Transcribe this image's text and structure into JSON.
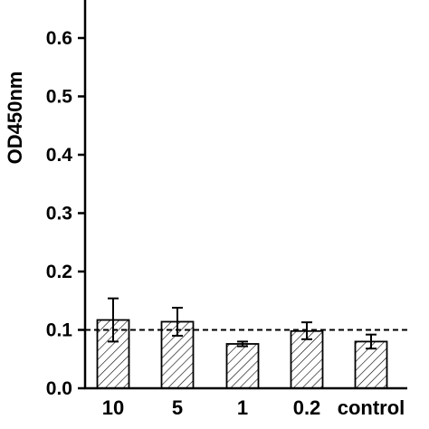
{
  "chart_data": {
    "type": "bar",
    "title": "",
    "xlabel": "",
    "ylabel": "OD450nm",
    "ylim": [
      0,
      0.66
    ],
    "yticks": [
      0.0,
      0.1,
      0.2,
      0.3,
      0.4,
      0.5,
      0.6
    ],
    "ytick_labels": [
      "0.0",
      "0.1",
      "0.2",
      "0.3",
      "0.4",
      "0.5",
      "0.6"
    ],
    "categories": [
      "10",
      "5",
      "1",
      "0.2",
      "control"
    ],
    "values": [
      0.117,
      0.114,
      0.076,
      0.098,
      0.08
    ],
    "error_low": [
      0.08,
      0.09,
      0.072,
      0.084,
      0.068
    ],
    "error_high": [
      0.154,
      0.138,
      0.08,
      0.113,
      0.092
    ],
    "reference_line": {
      "y": 0.1,
      "style": "dashed"
    },
    "bar_pattern": "diagonal-hatch",
    "grid": false,
    "legend": "none",
    "colors": {
      "bar_fill": "#ffffff",
      "hatch": "#000000",
      "axis": "#000000"
    }
  }
}
